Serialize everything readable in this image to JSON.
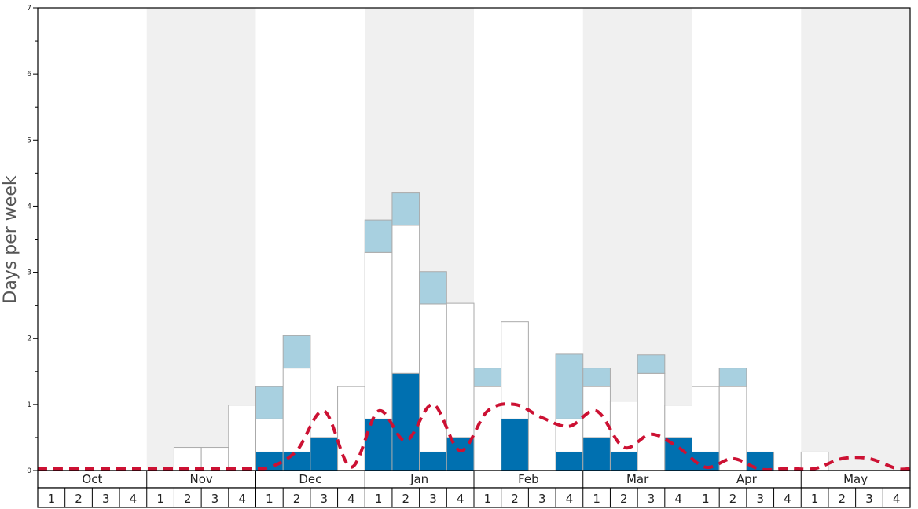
{
  "chart_data": {
    "type": "bar",
    "stacked": true,
    "ylabel": "Days per week",
    "ylim": [
      0,
      7
    ],
    "y_ticks": [
      "0",
      "1",
      "2",
      "3",
      "4",
      "5",
      "6",
      "7"
    ],
    "months": [
      "Oct",
      "Nov",
      "Dec",
      "Jan",
      "Feb",
      "Mar",
      "Apr",
      "May"
    ],
    "week_labels": [
      "1",
      "2",
      "3",
      "4"
    ],
    "colors": {
      "dark_blue": "#0070b0",
      "white_fill": "#ffffff",
      "light_blue": "#a8d0e0",
      "line": "#cc1133",
      "shade": "#f0f0f0",
      "bar_border": "#aaaaaa"
    },
    "series": [
      {
        "fill": "dark_blue",
        "values": [
          0,
          0,
          0,
          0,
          0,
          0,
          0,
          0,
          0.28,
          0.28,
          0.5,
          0,
          0.78,
          1.47,
          0.28,
          0.5,
          0,
          0.78,
          0,
          0.28,
          0.5,
          0.28,
          0,
          0.5,
          0.28,
          0,
          0.28,
          0,
          0,
          0,
          0,
          0
        ]
      },
      {
        "fill": "white_fill",
        "values": [
          0,
          0,
          0,
          0,
          0,
          0.35,
          0.35,
          0.99,
          0.5,
          1.27,
          0,
          1.27,
          2.52,
          2.24,
          2.24,
          2.03,
          1.27,
          1.47,
          0,
          0.5,
          0.77,
          0.77,
          1.47,
          0.49,
          0.99,
          1.27,
          0,
          0,
          0.28,
          0,
          0,
          0
        ]
      },
      {
        "fill": "light_blue",
        "values": [
          0,
          0,
          0,
          0,
          0,
          0,
          0,
          0,
          0.49,
          0.49,
          0,
          0,
          0.49,
          0.49,
          0.49,
          0,
          0.28,
          0,
          0,
          0.98,
          0.28,
          0,
          0.28,
          0,
          0,
          0.28,
          0,
          0,
          0,
          0,
          0,
          0
        ]
      }
    ],
    "line": {
      "style": "dashed",
      "values": [
        0.03,
        0.03,
        0.03,
        0.03,
        0.03,
        0.03,
        0.03,
        0.03,
        0.05,
        0.3,
        0.9,
        0.05,
        0.9,
        0.45,
        1.0,
        0.3,
        0.9,
        1.0,
        0.8,
        0.67,
        0.9,
        0.35,
        0.55,
        0.35,
        0.05,
        0.18,
        0.02,
        0.03,
        0.03,
        0.18,
        0.18,
        0.03
      ]
    }
  }
}
